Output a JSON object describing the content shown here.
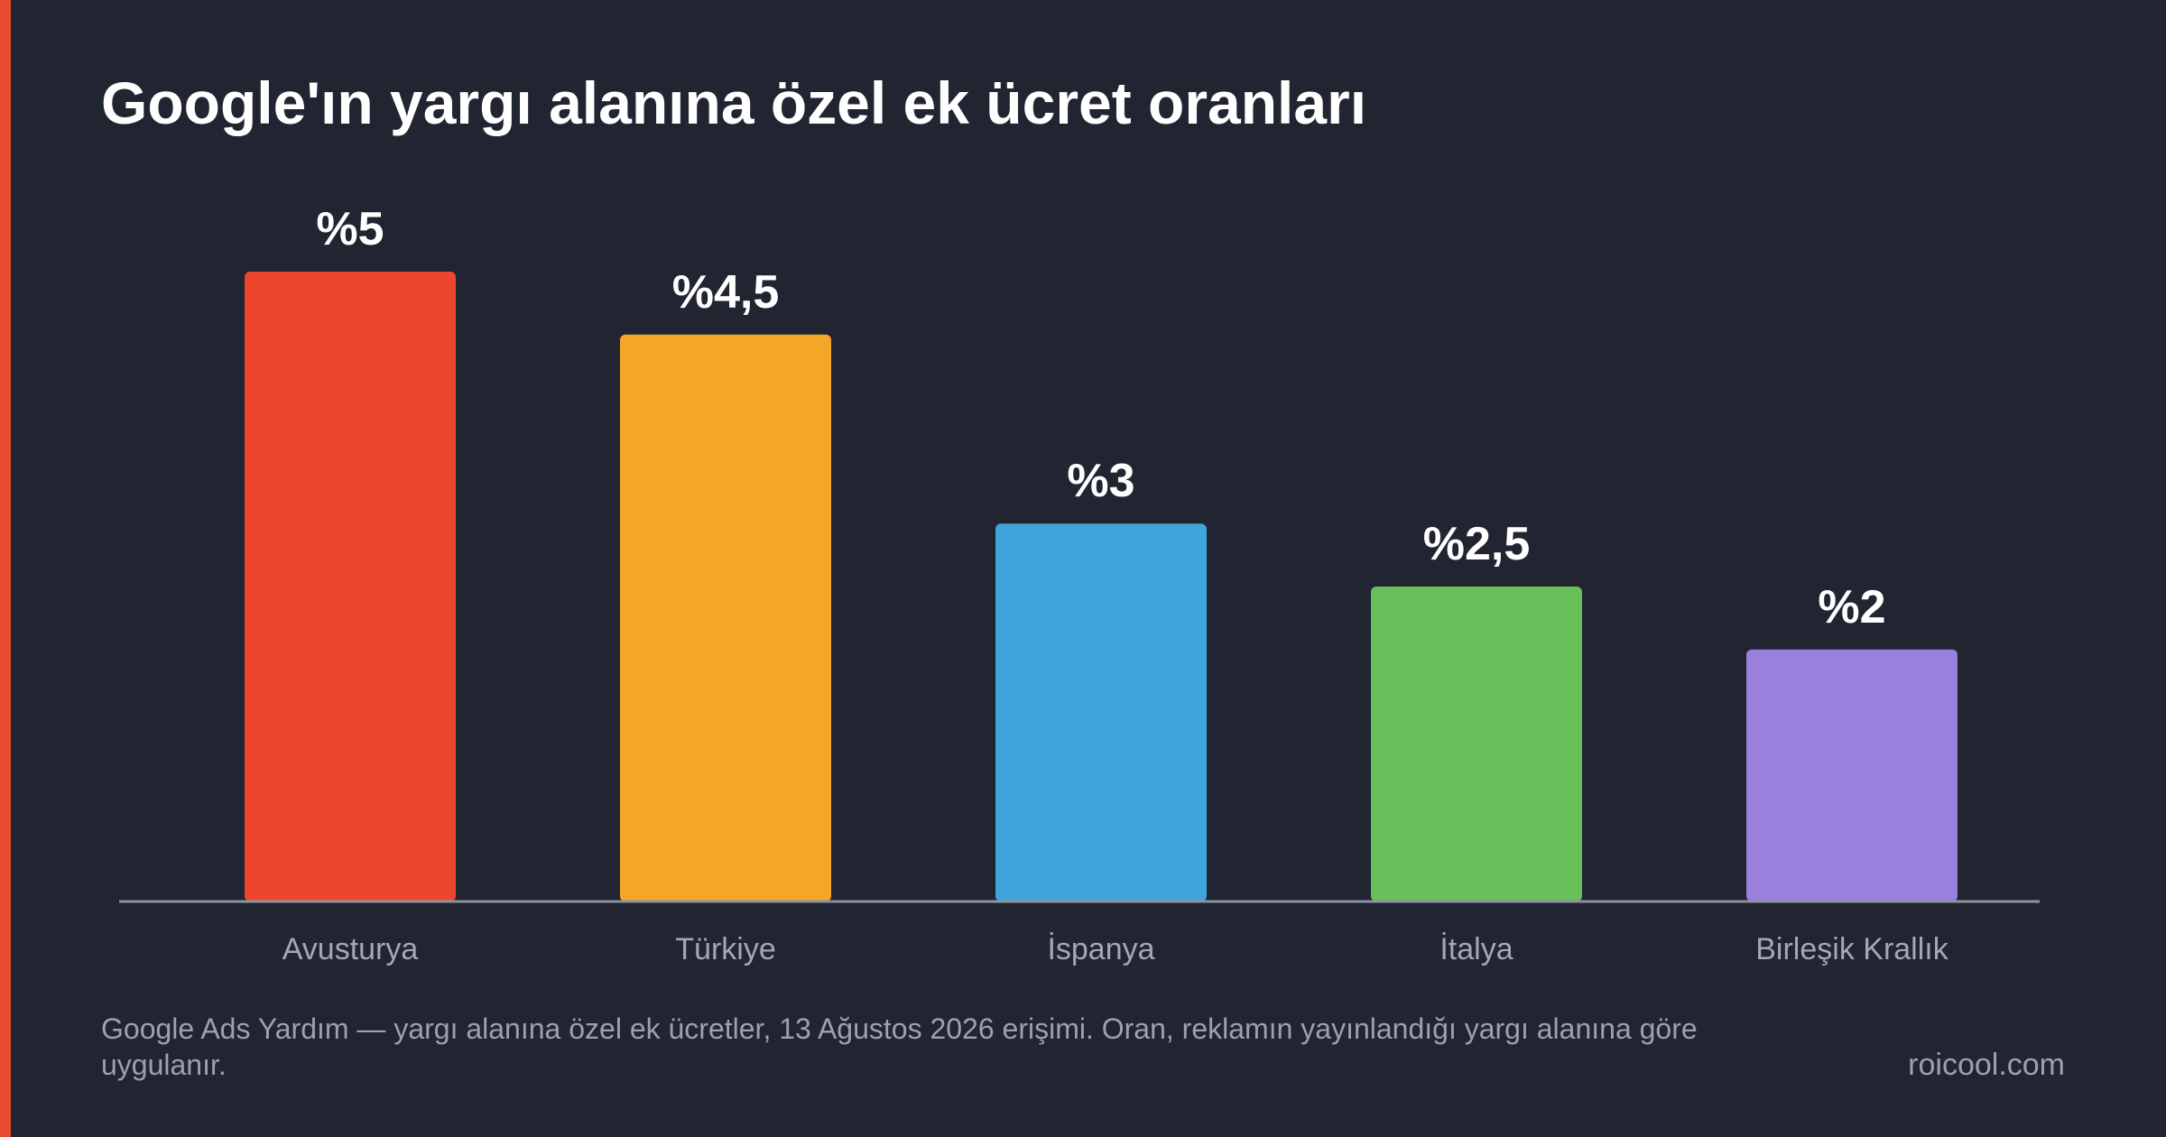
{
  "colors": {
    "background": "#212431",
    "accent": "#E84A2E",
    "axis": "#8d93a3",
    "title": "#ffffff",
    "muted_text": "#9ba1b0",
    "value_label": "#ffffff",
    "category_label": "#a2a8b6"
  },
  "chart_data": {
    "type": "bar",
    "title": "Google'ın yargı alanına özel ek ücret oranları",
    "categories": [
      "Avusturya",
      "Türkiye",
      "İspanya",
      "İtalya",
      "Birleşik Krallık"
    ],
    "values": [
      5,
      4.5,
      3,
      2.5,
      2
    ],
    "value_labels": [
      "%5",
      "%4,5",
      "%3",
      "%2,5",
      "%2"
    ],
    "bar_colors": [
      "#EC462D",
      "#F4A726",
      "#3EA4DA",
      "#69BF5A",
      "#9B7FDD"
    ],
    "ylim": [
      0,
      5
    ],
    "grid": false,
    "legend": "none",
    "xlabel": "",
    "ylabel": ""
  },
  "footer": {
    "source": "Google Ads Yardım — yargı alanına özel ek ücretler, 13 Ağustos 2026 erişimi. Oran, reklamın yayınlandığı yargı alanına göre uygulanır.",
    "site": "roicool.com"
  }
}
